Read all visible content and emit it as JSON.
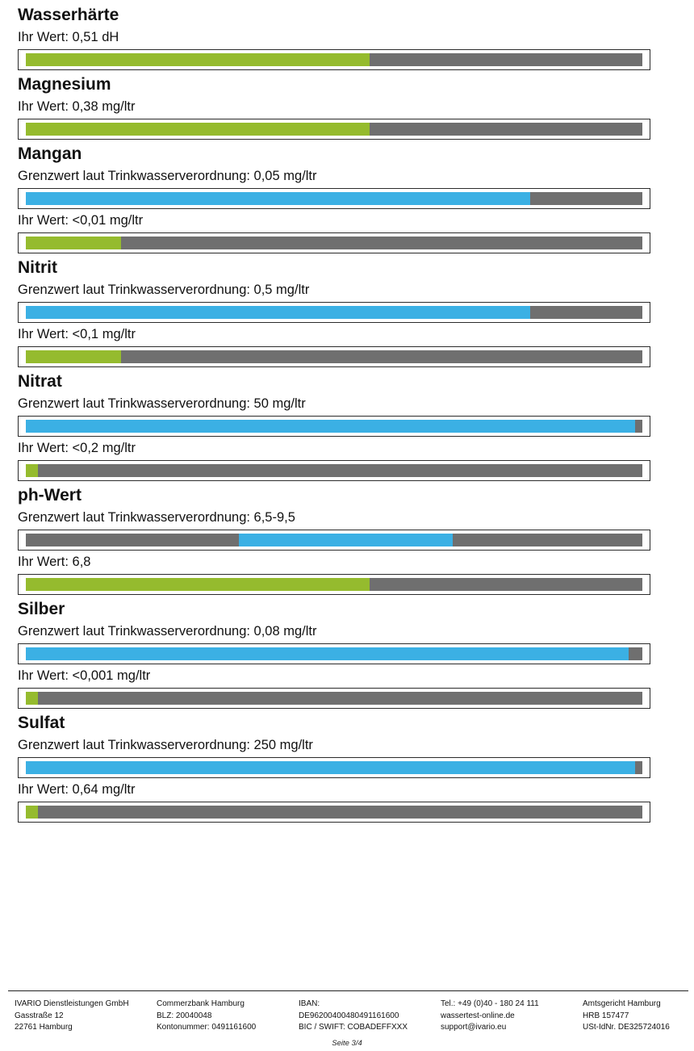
{
  "sections": [
    {
      "title": "Wasserhärte",
      "bars": [
        {
          "label": "Ihr Wert: 0,51 dH",
          "kind": "value",
          "fill_start": 0,
          "fill_end": 0.558
        }
      ]
    },
    {
      "title": "Magnesium",
      "bars": [
        {
          "label": "Ihr Wert: 0,38 mg/ltr",
          "kind": "value",
          "fill_start": 0,
          "fill_end": 0.558
        }
      ]
    },
    {
      "title": "Mangan",
      "bars": [
        {
          "label": "Grenzwert laut Trinkwasserverordnung: 0,05 mg/ltr",
          "kind": "limit",
          "fill_start": 0,
          "fill_end": 0.818
        },
        {
          "label": "Ihr Wert: <0,01 mg/ltr",
          "kind": "value",
          "fill_start": 0,
          "fill_end": 0.154
        }
      ]
    },
    {
      "title": "Nitrit",
      "bars": [
        {
          "label": "Grenzwert laut Trinkwasserverordnung: 0,5 mg/ltr",
          "kind": "limit",
          "fill_start": 0,
          "fill_end": 0.818
        },
        {
          "label": "Ihr Wert: <0,1 mg/ltr",
          "kind": "value",
          "fill_start": 0,
          "fill_end": 0.154
        }
      ]
    },
    {
      "title": "Nitrat",
      "bars": [
        {
          "label": "Grenzwert laut Trinkwasserverordnung: 50 mg/ltr",
          "kind": "limit",
          "fill_start": 0,
          "fill_end": 0.988
        },
        {
          "label": "Ihr Wert: <0,2 mg/ltr",
          "kind": "value",
          "fill_start": 0,
          "fill_end": 0.02
        }
      ]
    },
    {
      "title": "ph-Wert",
      "bars": [
        {
          "label": "Grenzwert laut Trinkwasserverordnung: 6,5-9,5",
          "kind": "limit",
          "fill_start": 0.346,
          "fill_end": 0.693
        },
        {
          "label": "Ihr Wert: 6,8",
          "kind": "value",
          "fill_start": 0,
          "fill_end": 0.558
        }
      ]
    },
    {
      "title": "Silber",
      "bars": [
        {
          "label": "Grenzwert laut Trinkwasserverordnung: 0,08 mg/ltr",
          "kind": "limit",
          "fill_start": 0,
          "fill_end": 0.978
        },
        {
          "label": "Ihr Wert: <0,001 mg/ltr",
          "kind": "value",
          "fill_start": 0,
          "fill_end": 0.02
        }
      ]
    },
    {
      "title": "Sulfat",
      "bars": [
        {
          "label": "Grenzwert laut Trinkwasserverordnung: 250 mg/ltr",
          "kind": "limit",
          "fill_start": 0,
          "fill_end": 0.988
        },
        {
          "label": "Ihr Wert: 0,64 mg/ltr",
          "kind": "value",
          "fill_start": 0,
          "fill_end": 0.02
        }
      ]
    }
  ],
  "colors": {
    "value_fill": "#95bb2e",
    "limit_fill": "#3bb0e4",
    "track": "#6f6f6f",
    "frame": "#2b2b2b"
  },
  "footer": {
    "columns": [
      [
        "IVARIO Dienstleistungen GmbH",
        "Gasstraße 12",
        "22761 Hamburg"
      ],
      [
        "Commerzbank Hamburg",
        "BLZ: 20040048",
        "Kontonummer: 0491161600"
      ],
      [
        "IBAN:",
        "DE96200400480491161600",
        "BIC / SWIFT: COBADEFFXXX"
      ],
      [
        "Tel.: +49 (0)40 - 180 24 111",
        "wassertest-online.de",
        "support@ivario.eu"
      ],
      [
        "Amtsgericht Hamburg",
        "HRB 157477",
        "USt-IdNr. DE325724016"
      ]
    ],
    "page_number": "Seite 3/4"
  }
}
